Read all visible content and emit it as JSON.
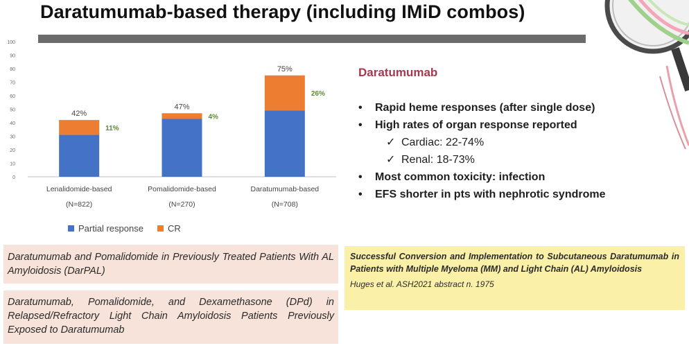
{
  "slide": {
    "title": "Daratumumab-based therapy (including IMiD combos)"
  },
  "chart_data": {
    "type": "bar",
    "stacked": true,
    "categories": [
      "Lenalidomide-based",
      "Pomalidomide-based",
      "Daratumumab-based"
    ],
    "category_sublabels": [
      "(N=822)",
      "(N=270)",
      "(N=708)"
    ],
    "series": [
      {
        "name": "Partial response",
        "color": "#4472c4",
        "values": [
          31,
          43,
          49
        ]
      },
      {
        "name": "CR",
        "color": "#ed7d31",
        "values": [
          11,
          4,
          26
        ]
      }
    ],
    "total_labels": [
      "42%",
      "47%",
      "75%"
    ],
    "cr_labels": [
      "11%",
      "4%",
      "26%"
    ],
    "ylim": [
      0,
      100
    ],
    "yticks": [
      0,
      10,
      20,
      30,
      40,
      50,
      60,
      70,
      80,
      90,
      100
    ],
    "legend_position": "bottom",
    "grid": false
  },
  "panel": {
    "heading": "Daratumumab",
    "bullets": [
      "Rapid heme responses (after single dose)",
      "High rates of organ response reported",
      "Most common toxicity: infection",
      "EFS shorter in pts with nephrotic syndrome"
    ],
    "sub_bullets": [
      "Cardiac: 22-74%",
      "Renal: 18-73%"
    ],
    "bullet_glyph": "•",
    "check_glyph": "✓"
  },
  "references": {
    "ref1": "Daratumumab and Pomalidomide in Previously Treated Patients With AL Amyloidosis (DarPAL)",
    "ref2": "Daratumumab, Pomalidomide, and Dexamethasone (DPd) in Relapsed/Refractory Light Chain Amyloidosis Patients Previously Exposed to Daratumumab",
    "ref3": "Successful Conversion and Implementation to Subcutaneous Daratumumab in Patients with Multiple Myeloma (MM) and Light Chain (AL) Amyloidosis",
    "ref3_cite": "Huges et al. ASH2021 abstract n. 1975"
  }
}
